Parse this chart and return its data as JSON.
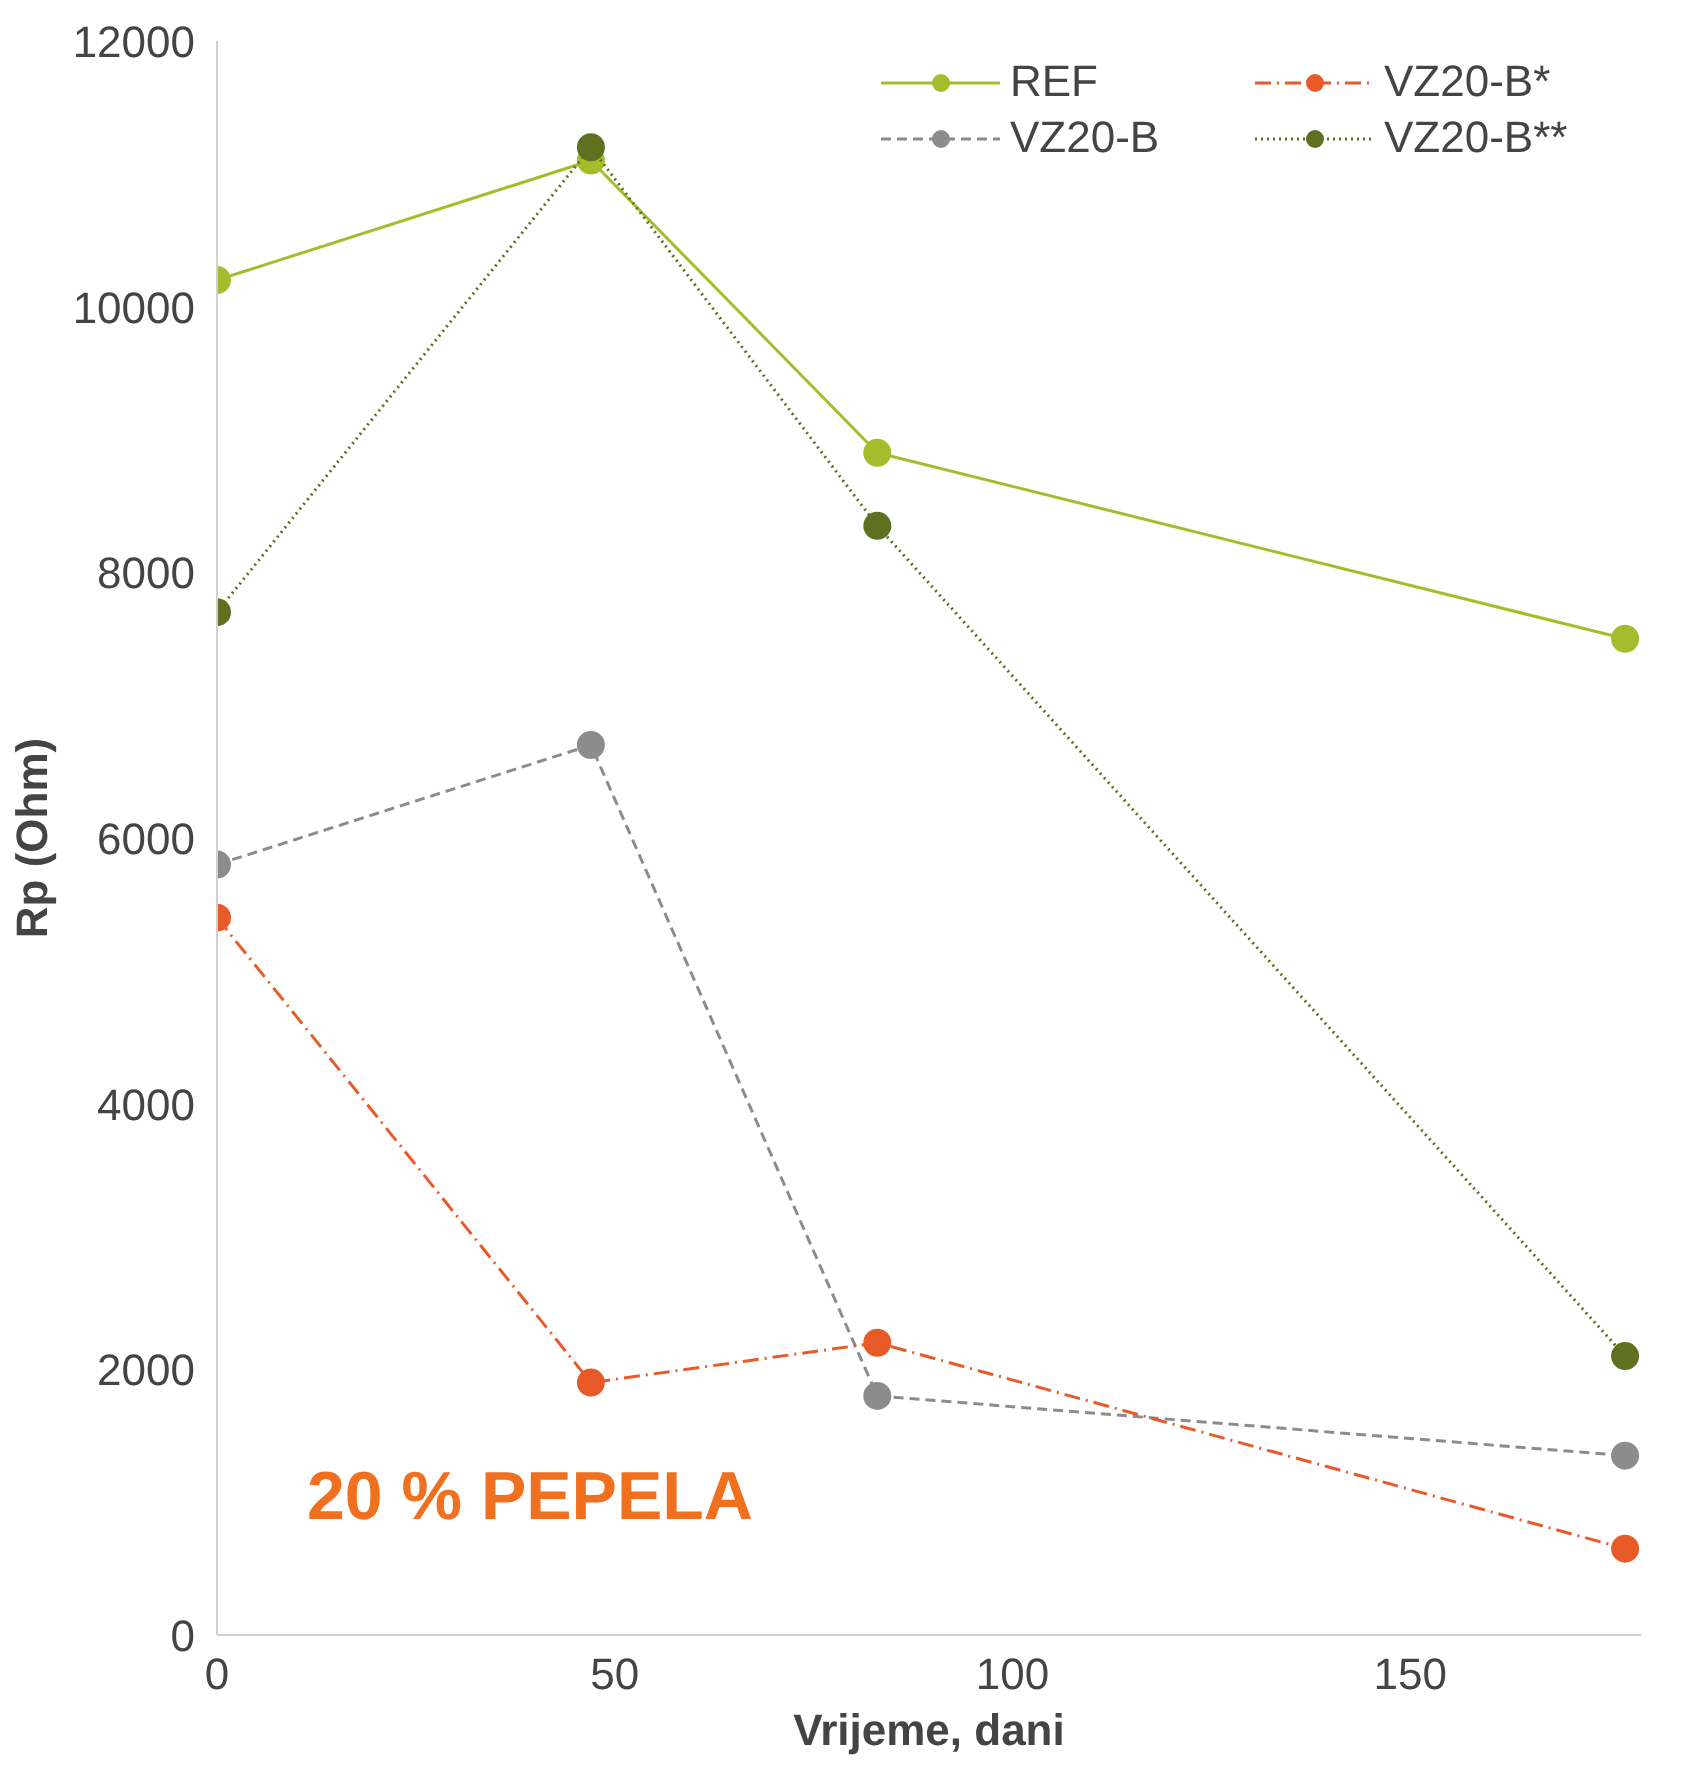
{
  "chart_data": {
    "type": "line",
    "xlabel": "Vrijeme, dani",
    "ylabel": "Rp (Ohm)",
    "x": [
      0,
      47,
      83,
      177
    ],
    "series": [
      {
        "name": "REF",
        "color": "#a5bd2c",
        "line_style": "solid",
        "values": [
          10200,
          11100,
          8900,
          7500
        ]
      },
      {
        "name": "VZ20-B",
        "color": "#8c8c8c",
        "line_style": "dashed",
        "values": [
          5800,
          6700,
          1800,
          1350
        ]
      },
      {
        "name": "VZ20-B*",
        "color": "#e85a28",
        "line_style": "dashdot",
        "values": [
          5400,
          1900,
          2200,
          650
        ]
      },
      {
        "name": "VZ20-B**",
        "color": "#5f7020",
        "line_style": "dotted",
        "values": [
          7700,
          11200,
          8350,
          2100
        ]
      }
    ],
    "xlim": [
      0,
      179
    ],
    "ylim": [
      0,
      12000
    ],
    "xticks": [
      0,
      50,
      100,
      150
    ],
    "yticks": [
      0,
      2000,
      4000,
      6000,
      8000,
      10000,
      12000
    ],
    "grid": false,
    "legend": "top right",
    "marker": "circle",
    "annotations": [
      "20 % PEPELA"
    ]
  }
}
